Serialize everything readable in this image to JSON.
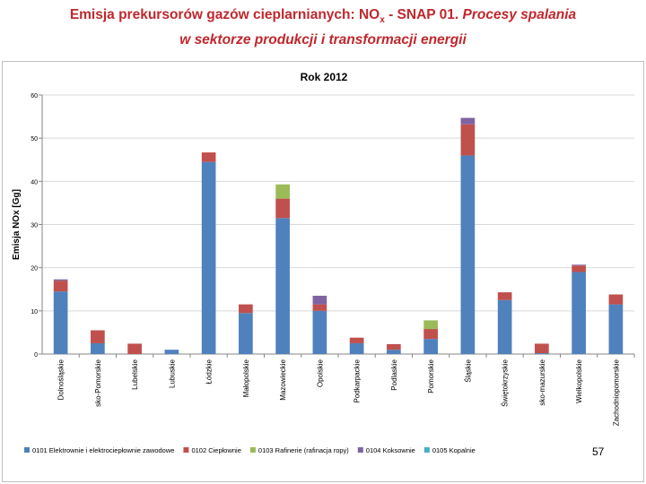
{
  "slide": {
    "title_part1": "Emisja prekursorów gazów cieplarnianych:  NO",
    "title_sub": "x",
    "title_part2": " - SNAP 01. ",
    "title_italic_1": "Procesy spalania",
    "title_italic_2": "w sektorze produkcji i transformacji energii",
    "page_number": "57"
  },
  "chart_data": {
    "type": "bar",
    "stacked": true,
    "title": "Rok 2012",
    "xlabel": "",
    "ylabel": "Emisja NOx [Gg]",
    "ylim": [
      0,
      60
    ],
    "yticks": [
      0,
      10,
      20,
      30,
      40,
      50,
      60
    ],
    "grid": true,
    "legend_position": "bottom",
    "categories": [
      "Dolnośląskie",
      "sko-Pomorskie",
      "Lubelskie",
      "Lubuskie",
      "Łódzkie",
      "Małopolskie",
      "Mazowieckie",
      "Opolskie",
      "Podkarpackie",
      "Podlaskie",
      "Pomorskie",
      "Śląskie",
      "Świętokrzyskie",
      "sko-mazurskie",
      "Wielkopolskie",
      "Zachodniopomorskie"
    ],
    "series": [
      {
        "name": "0101  Elektrownie i elektrociepłownie zawodowe",
        "color": "#4f81bd",
        "values": [
          14.5,
          2.5,
          0,
          1,
          44.5,
          9.5,
          31.5,
          10,
          2.5,
          1,
          3.5,
          46,
          12.5,
          0.2,
          19,
          11.5
        ]
      },
      {
        "name": "0102  Ciepłownie",
        "color": "#c0504d",
        "values": [
          2.5,
          3,
          2.4,
          0,
          2.2,
          2,
          4.5,
          1.5,
          1.3,
          1.3,
          2.3,
          7.2,
          1.8,
          2.2,
          1.5,
          2.3
        ]
      },
      {
        "name": "0103  Rafinerie (rafinacja ropy)",
        "color": "#9bbb59",
        "values": [
          0,
          0,
          0,
          0,
          0,
          0,
          3.3,
          0,
          0,
          0,
          2,
          0,
          0,
          0,
          0,
          0
        ]
      },
      {
        "name": "0104  Koksownie",
        "color": "#8064a2",
        "values": [
          0.3,
          0,
          0,
          0,
          0,
          0,
          0,
          2,
          0,
          0,
          0,
          1.5,
          0,
          0,
          0.2,
          0
        ]
      },
      {
        "name": "0105  Kopalnie",
        "color": "#4bacc6",
        "values": [
          0,
          0,
          0,
          0,
          0,
          0,
          0,
          0,
          0,
          0,
          0,
          0,
          0,
          0,
          0,
          0
        ]
      }
    ]
  }
}
